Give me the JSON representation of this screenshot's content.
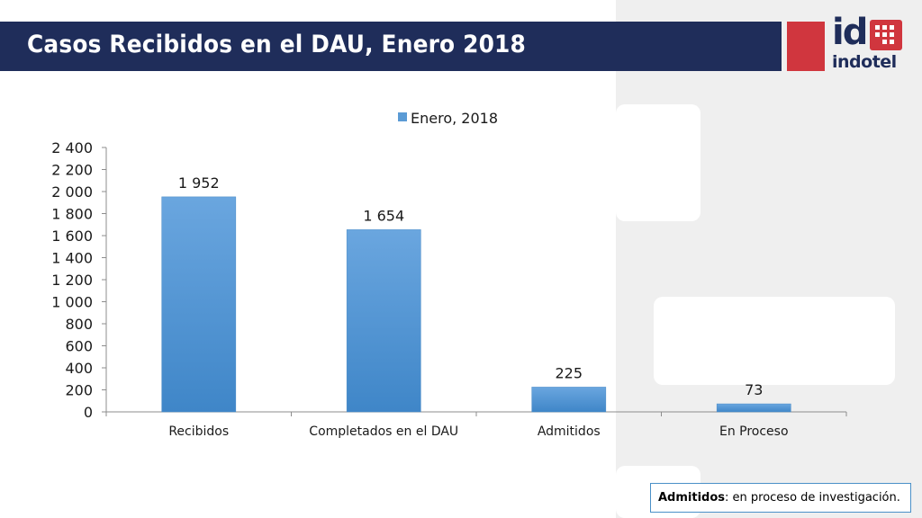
{
  "slide": {
    "title": "Casos Recibidos en el DAU, Enero 2018",
    "logo": {
      "mark": "id",
      "name": "indotel",
      "accent_color": "#d0363e",
      "brand_color": "#1f2d5a"
    }
  },
  "note": {
    "term": "Admitidos",
    "definition": ": en proceso de investigación."
  },
  "chart_data": {
    "type": "bar",
    "categories": [
      "Recibidos",
      "Completados en el DAU",
      "Admitidos",
      "En Proceso"
    ],
    "series": [
      {
        "name": "Enero, 2018",
        "values": [
          1952,
          1654,
          225,
          73
        ],
        "color": "#5b9bd5"
      }
    ],
    "data_labels": [
      "1 952",
      "1 654",
      "225",
      "73"
    ],
    "y_ticks": [
      0,
      200,
      400,
      600,
      800,
      1000,
      1200,
      1400,
      1600,
      1800,
      2000,
      2200,
      2400
    ],
    "y_tick_labels": [
      "0",
      "200",
      "400",
      "600",
      "800",
      "1 000",
      "1 200",
      "1 400",
      "1 600",
      "1 800",
      "2 000",
      "2 200",
      "2 400"
    ],
    "ylim": [
      0,
      2400
    ],
    "grid": false,
    "legend_position": "top",
    "title": "",
    "xlabel": "",
    "ylabel": ""
  }
}
